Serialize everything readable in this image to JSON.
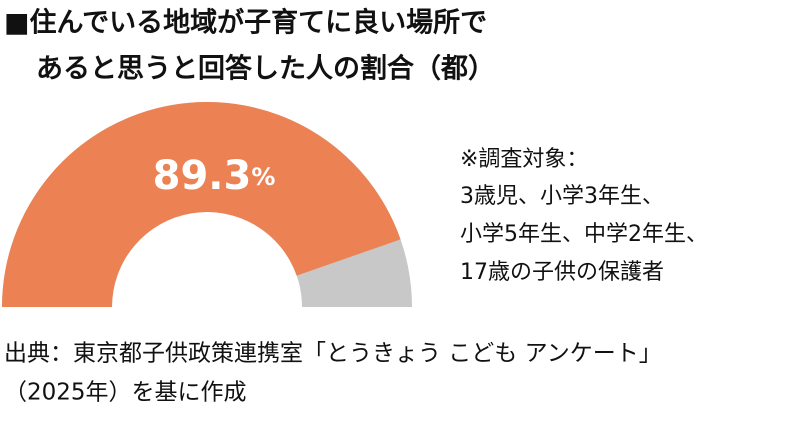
{
  "chart_data": {
    "type": "gauge",
    "title_lines": [
      "■住んでいる地域が子育てに良い場所で",
      "あると思うと回答した人の割合（都）"
    ],
    "values": [
      89.3
    ],
    "unit": "%",
    "ylim": [
      0,
      100
    ],
    "color": "#ec8253",
    "track_color": "#c8c8c8",
    "note_lines": [
      "※調査対象：",
      "3歳児、小学3年生、",
      "小学5年生、中学2年生、",
      "17歳の子供の保護者"
    ],
    "source_lines": [
      "出典：東京都子供政策連携室「とうきょう こども アンケート」",
      "（2025年）を基に作成"
    ]
  }
}
